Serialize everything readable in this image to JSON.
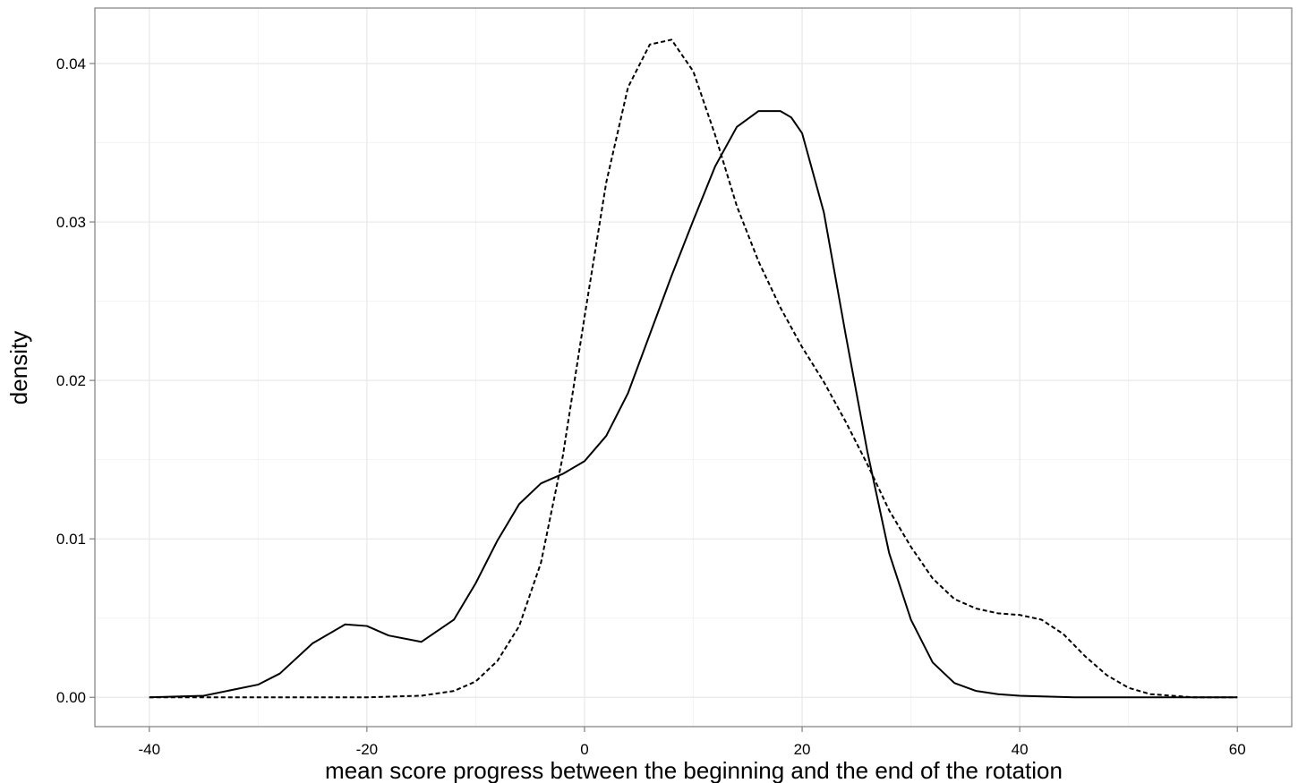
{
  "chart_data": {
    "type": "line",
    "xlabel": "mean score progress between the beginning and the end of the rotation",
    "ylabel": "density",
    "xlim": [
      -45,
      65
    ],
    "ylim": [
      -0.00185,
      0.0435
    ],
    "x_ticks": [
      -40,
      -20,
      0,
      20,
      40,
      60
    ],
    "x_tick_labels": [
      "-40",
      "-20",
      "0",
      "20",
      "40",
      "60"
    ],
    "y_ticks": [
      0,
      0.01,
      0.02,
      0.03,
      0.04
    ],
    "y_tick_labels": [
      "0.00",
      "0.01",
      "0.02",
      "0.03",
      "0.04"
    ],
    "grid": true,
    "legend": "none",
    "series": [
      {
        "line_style": "solid",
        "color": "#000000",
        "x": [
          -40,
          -35,
          -30,
          -28,
          -25,
          -22,
          -20,
          -18,
          -15,
          -12,
          -10,
          -8,
          -6,
          -4,
          -2,
          0,
          2,
          4,
          6,
          8,
          10,
          12,
          14,
          16,
          18,
          19,
          20,
          22,
          24,
          26,
          28,
          30,
          32,
          34,
          36,
          38,
          40,
          45,
          50,
          55,
          60
        ],
        "y": [
          0.0,
          0.0001,
          0.0008,
          0.0015,
          0.0034,
          0.0046,
          0.0045,
          0.0039,
          0.0035,
          0.0049,
          0.0072,
          0.0099,
          0.0122,
          0.0135,
          0.0141,
          0.0149,
          0.0165,
          0.0192,
          0.0229,
          0.0266,
          0.0301,
          0.0335,
          0.036,
          0.037,
          0.037,
          0.0366,
          0.0356,
          0.0306,
          0.0229,
          0.0155,
          0.0091,
          0.0049,
          0.0022,
          0.0009,
          0.0004,
          0.0002,
          0.0001,
          0.0,
          0.0,
          0.0,
          0.0
        ]
      },
      {
        "line_style": "dashed",
        "color": "#000000",
        "x": [
          -40,
          -20,
          -15,
          -12,
          -10,
          -8,
          -6,
          -4,
          -2,
          0,
          2,
          4,
          6,
          8,
          10,
          12,
          14,
          16,
          18,
          20,
          22,
          24,
          26,
          28,
          30,
          32,
          34,
          36,
          38,
          40,
          42,
          44,
          46,
          48,
          50,
          52,
          54,
          56,
          60
        ],
        "y": [
          0.0,
          0.0,
          0.0001,
          0.0004,
          0.001,
          0.0023,
          0.0045,
          0.0085,
          0.0152,
          0.024,
          0.0325,
          0.0385,
          0.0412,
          0.0415,
          0.0395,
          0.0355,
          0.031,
          0.0275,
          0.0246,
          0.0221,
          0.0199,
          0.0174,
          0.0147,
          0.0118,
          0.0095,
          0.0075,
          0.0062,
          0.0056,
          0.0053,
          0.0052,
          0.0049,
          0.004,
          0.0026,
          0.0014,
          0.0006,
          0.0002,
          0.0001,
          0.0,
          0.0
        ]
      }
    ]
  }
}
